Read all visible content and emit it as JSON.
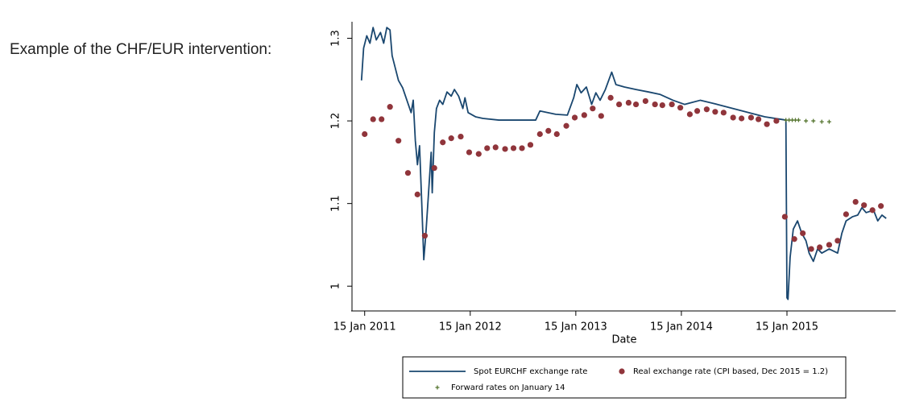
{
  "heading": "Example of the CHF/EUR intervention:",
  "chart_data": {
    "type": "line",
    "xlabel": "Date",
    "xlim": [
      2010.92,
      2016.07
    ],
    "xticks": [
      {
        "value": 2011.04,
        "label": "15 Jan 2011"
      },
      {
        "value": 2012.04,
        "label": "15 Jan 2012"
      },
      {
        "value": 2013.04,
        "label": "15 Jan 2013"
      },
      {
        "value": 2014.04,
        "label": "15 Jan 2014"
      },
      {
        "value": 2015.04,
        "label": "15 Jan 2015"
      }
    ],
    "ylim": [
      0.97,
      1.32
    ],
    "yticks": [
      1,
      1.1,
      1.2,
      1.3
    ],
    "grid": false,
    "legend": "bottom",
    "series": [
      {
        "name": "Spot EURCHF exchange rate",
        "mark": "line",
        "color": "#1a476f",
        "x": [
          2011.01,
          2011.03,
          2011.06,
          2011.09,
          2011.12,
          2011.15,
          2011.19,
          2011.22,
          2011.25,
          2011.28,
          2011.3,
          2011.33,
          2011.36,
          2011.4,
          2011.44,
          2011.48,
          2011.5,
          2011.52,
          2011.54,
          2011.56,
          2011.58,
          2011.6,
          2011.62,
          2011.64,
          2011.67,
          2011.68,
          2011.7,
          2011.72,
          2011.75,
          2011.78,
          2011.82,
          2011.86,
          2011.89,
          2011.93,
          2011.97,
          2011.99,
          2012.02,
          2012.09,
          2012.16,
          2012.31,
          2012.66,
          2012.7,
          2012.85,
          2012.96,
          2013.02,
          2013.05,
          2013.09,
          2013.14,
          2013.19,
          2013.23,
          2013.27,
          2013.32,
          2013.38,
          2013.42,
          2013.5,
          2013.61,
          2013.73,
          2013.84,
          2013.96,
          2014.07,
          2014.22,
          2014.38,
          2014.53,
          2014.68,
          2014.83,
          2015.03,
          2015.04,
          2015.05,
          2015.07,
          2015.1,
          2015.14,
          2015.18,
          2015.22,
          2015.25,
          2015.29,
          2015.33,
          2015.37,
          2015.44,
          2015.52,
          2015.56,
          2015.6,
          2015.66,
          2015.71,
          2015.75,
          2015.79,
          2015.86,
          2015.9,
          2015.94,
          2015.98
        ],
        "values": [
          1.249,
          1.288,
          1.303,
          1.294,
          1.313,
          1.298,
          1.307,
          1.294,
          1.313,
          1.31,
          1.279,
          1.264,
          1.249,
          1.24,
          1.225,
          1.21,
          1.225,
          1.176,
          1.147,
          1.17,
          1.103,
          1.032,
          1.064,
          1.103,
          1.162,
          1.113,
          1.186,
          1.215,
          1.225,
          1.22,
          1.235,
          1.23,
          1.238,
          1.23,
          1.215,
          1.228,
          1.21,
          1.205,
          1.203,
          1.201,
          1.201,
          1.212,
          1.208,
          1.207,
          1.228,
          1.244,
          1.234,
          1.241,
          1.22,
          1.234,
          1.225,
          1.238,
          1.259,
          1.244,
          1.241,
          1.238,
          1.235,
          1.232,
          1.225,
          1.22,
          1.225,
          1.22,
          1.215,
          1.21,
          1.205,
          1.201,
          0.986,
          0.984,
          1.035,
          1.069,
          1.079,
          1.064,
          1.055,
          1.04,
          1.03,
          1.045,
          1.04,
          1.045,
          1.04,
          1.064,
          1.079,
          1.084,
          1.086,
          1.095,
          1.089,
          1.092,
          1.079,
          1.086,
          1.082
        ]
      },
      {
        "name": "Real exchange rate (CPI based, Dec 2015 = 1.2)",
        "mark": "dot",
        "color": "#90353b",
        "x": [
          2011.04,
          2011.12,
          2011.2,
          2011.28,
          2011.36,
          2011.45,
          2011.54,
          2011.61,
          2011.7,
          2011.78,
          2011.86,
          2011.95,
          2012.03,
          2012.12,
          2012.2,
          2012.28,
          2012.37,
          2012.45,
          2012.53,
          2012.61,
          2012.7,
          2012.78,
          2012.86,
          2012.95,
          2013.03,
          2013.12,
          2013.2,
          2013.28,
          2013.37,
          2013.45,
          2013.54,
          2013.61,
          2013.7,
          2013.79,
          2013.86,
          2013.95,
          2014.03,
          2014.12,
          2014.19,
          2014.28,
          2014.36,
          2014.44,
          2014.53,
          2014.61,
          2014.7,
          2014.77,
          2014.85,
          2014.94,
          2015.02,
          2015.11,
          2015.19,
          2015.27,
          2015.35,
          2015.44,
          2015.52,
          2015.6,
          2015.69,
          2015.77,
          2015.85,
          2015.93
        ],
        "values": [
          1.184,
          1.202,
          1.202,
          1.217,
          1.176,
          1.137,
          1.111,
          1.061,
          1.143,
          1.174,
          1.179,
          1.181,
          1.162,
          1.16,
          1.167,
          1.168,
          1.166,
          1.167,
          1.167,
          1.171,
          1.184,
          1.188,
          1.184,
          1.194,
          1.204,
          1.207,
          1.215,
          1.206,
          1.228,
          1.22,
          1.222,
          1.22,
          1.224,
          1.22,
          1.219,
          1.22,
          1.216,
          1.208,
          1.212,
          1.214,
          1.211,
          1.21,
          1.204,
          1.203,
          1.204,
          1.202,
          1.196,
          1.2,
          1.084,
          1.057,
          1.064,
          1.045,
          1.047,
          1.05,
          1.055,
          1.087,
          1.102,
          1.098,
          1.092,
          1.097
        ]
      },
      {
        "name": "Forward rates on January 14",
        "mark": "plus",
        "color": "#55752f",
        "x": [
          2015.03,
          2015.06,
          2015.09,
          2015.12,
          2015.15,
          2015.22,
          2015.29,
          2015.37,
          2015.44
        ],
        "values": [
          1.201,
          1.201,
          1.201,
          1.201,
          1.201,
          1.2,
          1.2,
          1.199,
          1.199
        ]
      }
    ]
  }
}
